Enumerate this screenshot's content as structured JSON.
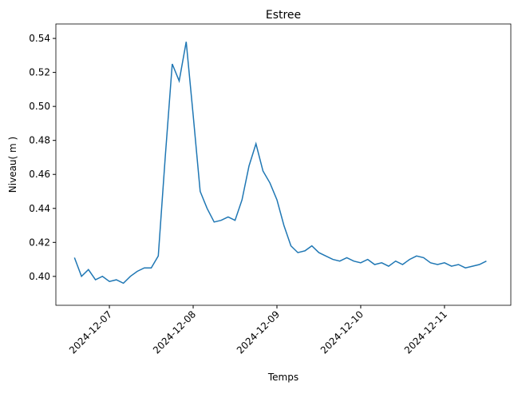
{
  "chart_data": {
    "type": "line",
    "title": "Estree",
    "xlabel": "Temps",
    "ylabel": "Niveau( m )",
    "x": [
      "2024-12-06T14:00",
      "2024-12-06T16:00",
      "2024-12-06T18:00",
      "2024-12-06T20:00",
      "2024-12-06T22:00",
      "2024-12-07T00:00",
      "2024-12-07T02:00",
      "2024-12-07T04:00",
      "2024-12-07T06:00",
      "2024-12-07T08:00",
      "2024-12-07T10:00",
      "2024-12-07T12:00",
      "2024-12-07T14:00",
      "2024-12-07T16:00",
      "2024-12-07T18:00",
      "2024-12-07T20:00",
      "2024-12-07T22:00",
      "2024-12-08T00:00",
      "2024-12-08T02:00",
      "2024-12-08T04:00",
      "2024-12-08T06:00",
      "2024-12-08T08:00",
      "2024-12-08T10:00",
      "2024-12-08T12:00",
      "2024-12-08T14:00",
      "2024-12-08T16:00",
      "2024-12-08T18:00",
      "2024-12-08T20:00",
      "2024-12-08T22:00",
      "2024-12-09T00:00",
      "2024-12-09T02:00",
      "2024-12-09T04:00",
      "2024-12-09T06:00",
      "2024-12-09T08:00",
      "2024-12-09T10:00",
      "2024-12-09T12:00",
      "2024-12-09T14:00",
      "2024-12-09T16:00",
      "2024-12-09T18:00",
      "2024-12-09T20:00",
      "2024-12-09T22:00",
      "2024-12-10T00:00",
      "2024-12-10T02:00",
      "2024-12-10T04:00",
      "2024-12-10T06:00",
      "2024-12-10T08:00",
      "2024-12-10T10:00",
      "2024-12-10T12:00",
      "2024-12-10T14:00",
      "2024-12-10T16:00",
      "2024-12-10T18:00",
      "2024-12-10T20:00",
      "2024-12-10T22:00",
      "2024-12-11T00:00",
      "2024-12-11T02:00",
      "2024-12-11T04:00",
      "2024-12-11T06:00",
      "2024-12-11T08:00",
      "2024-12-11T10:00",
      "2024-12-11T12:00"
    ],
    "series": [
      {
        "color": "#1f77b4",
        "values": [
          0.411,
          0.4,
          0.404,
          0.398,
          0.4,
          0.397,
          0.398,
          0.396,
          0.4,
          0.403,
          0.405,
          0.405,
          0.412,
          0.47,
          0.525,
          0.515,
          0.538,
          0.495,
          0.45,
          0.44,
          0.432,
          0.433,
          0.435,
          0.433,
          0.445,
          0.465,
          0.478,
          0.462,
          0.455,
          0.445,
          0.43,
          0.418,
          0.414,
          0.415,
          0.418,
          0.414,
          0.412,
          0.41,
          0.409,
          0.411,
          0.409,
          0.408,
          0.41,
          0.407,
          0.408,
          0.406,
          0.409,
          0.407,
          0.41,
          0.412,
          0.411,
          0.408,
          0.407,
          0.408,
          0.406,
          0.407,
          0.405,
          0.406,
          0.407,
          0.409
        ]
      }
    ],
    "xlim": [
      "2024-12-06T08:40",
      "2024-12-11T19:00"
    ],
    "xticks": [
      "2024-12-07",
      "2024-12-08",
      "2024-12-09",
      "2024-12-10",
      "2024-12-11"
    ],
    "ylim": [
      0.383,
      0.5485
    ],
    "yticks": [
      {
        "value": 0.4,
        "label": "0.40"
      },
      {
        "value": 0.42,
        "label": "0.42"
      },
      {
        "value": 0.44,
        "label": "0.44"
      },
      {
        "value": 0.46,
        "label": "0.46"
      },
      {
        "value": 0.48,
        "label": "0.48"
      },
      {
        "value": 0.5,
        "label": "0.50"
      },
      {
        "value": 0.52,
        "label": "0.52"
      },
      {
        "value": 0.54,
        "label": "0.54"
      }
    ]
  }
}
